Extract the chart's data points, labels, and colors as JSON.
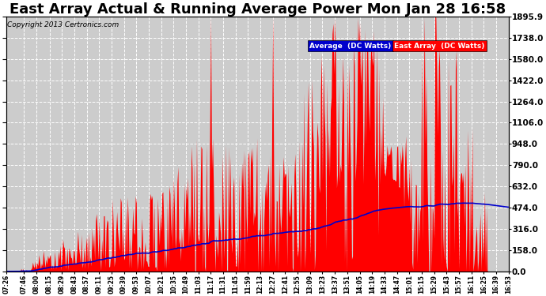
{
  "title": "East Array Actual & Running Average Power Mon Jan 28 16:58",
  "copyright": "Copyright 2013 Certronics.com",
  "ylabel_right_ticks": [
    0.0,
    158.0,
    316.0,
    474.0,
    632.0,
    790.0,
    948.0,
    1106.0,
    1264.0,
    1422.0,
    1580.0,
    1738.0,
    1895.9
  ],
  "ymax": 1895.9,
  "ymin": 0.0,
  "bg_color": "#ffffff",
  "plot_bg_color": "#cccccc",
  "grid_color": "#ffffff",
  "title_fontsize": 13,
  "legend_avg_label": "Average  (DC Watts)",
  "legend_ea_label": "East Array  (DC Watts)",
  "avg_line_color": "#0000cc",
  "ea_fill_color": "#ff0000",
  "xtick_labels": [
    "07:26",
    "07:46",
    "08:00",
    "08:15",
    "08:29",
    "08:43",
    "08:57",
    "09:11",
    "09:25",
    "09:39",
    "09:53",
    "10:07",
    "10:21",
    "10:35",
    "10:49",
    "11:03",
    "11:17",
    "11:31",
    "11:45",
    "11:59",
    "12:13",
    "12:27",
    "12:41",
    "12:55",
    "13:09",
    "13:23",
    "13:37",
    "13:51",
    "14:05",
    "14:19",
    "14:33",
    "14:47",
    "15:01",
    "15:15",
    "15:29",
    "15:43",
    "15:57",
    "16:11",
    "16:25",
    "16:39",
    "16:53"
  ]
}
